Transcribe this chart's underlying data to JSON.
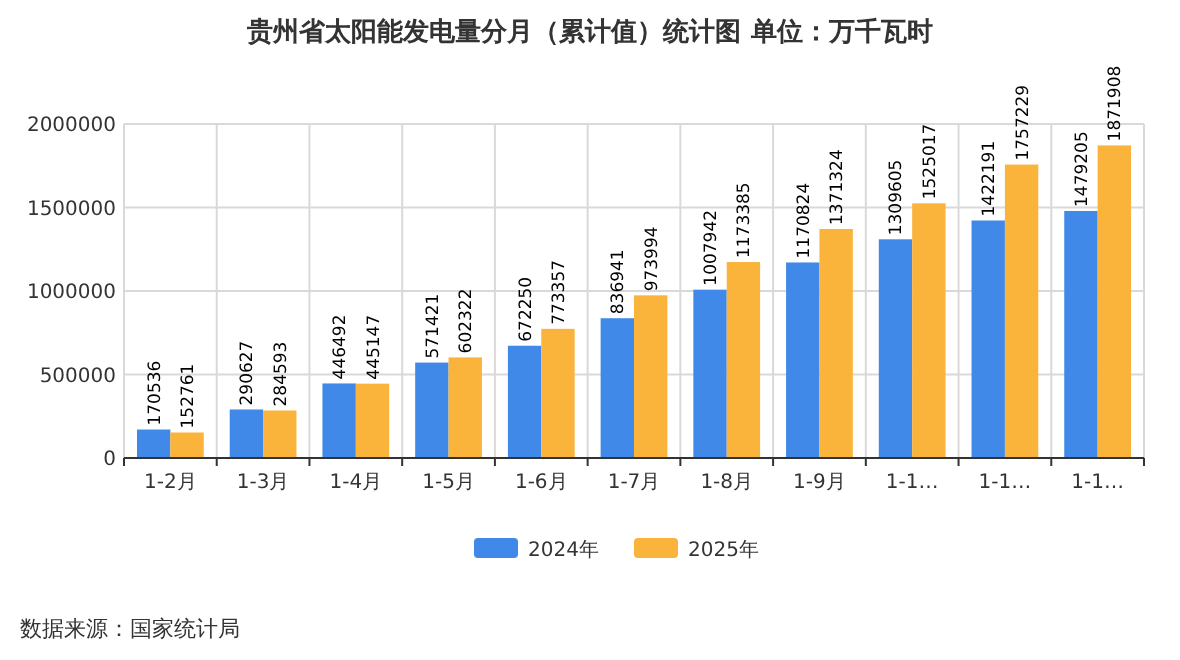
{
  "chart_data": {
    "type": "bar",
    "title": "贵州省太阳能发电量分月（累计值）统计图 单位：万千瓦时",
    "categories": [
      "1-2月",
      "1-3月",
      "1-4月",
      "1-5月",
      "1-6月",
      "1-7月",
      "1-8月",
      "1-9月",
      "1-1…",
      "1-1…",
      "1-1…"
    ],
    "series": [
      {
        "name": "2024年",
        "color": "#4189e8",
        "values": [
          170536,
          290627,
          446492,
          571421,
          672250,
          836941,
          1007942,
          1170824,
          1309605,
          1422191,
          1479205
        ]
      },
      {
        "name": "2025年",
        "color": "#fab33b",
        "values": [
          152761,
          284593,
          445147,
          602322,
          773357,
          973994,
          1173385,
          1371324,
          1525017,
          1757229,
          1871908
        ]
      }
    ],
    "ylim": [
      0,
      2000000
    ],
    "yticks": [
      0,
      500000,
      1000000,
      1500000,
      2000000
    ],
    "grid": true,
    "legend": "bottom",
    "data_labels": true,
    "annotations": [
      "数据来源：国家统计局"
    ]
  }
}
